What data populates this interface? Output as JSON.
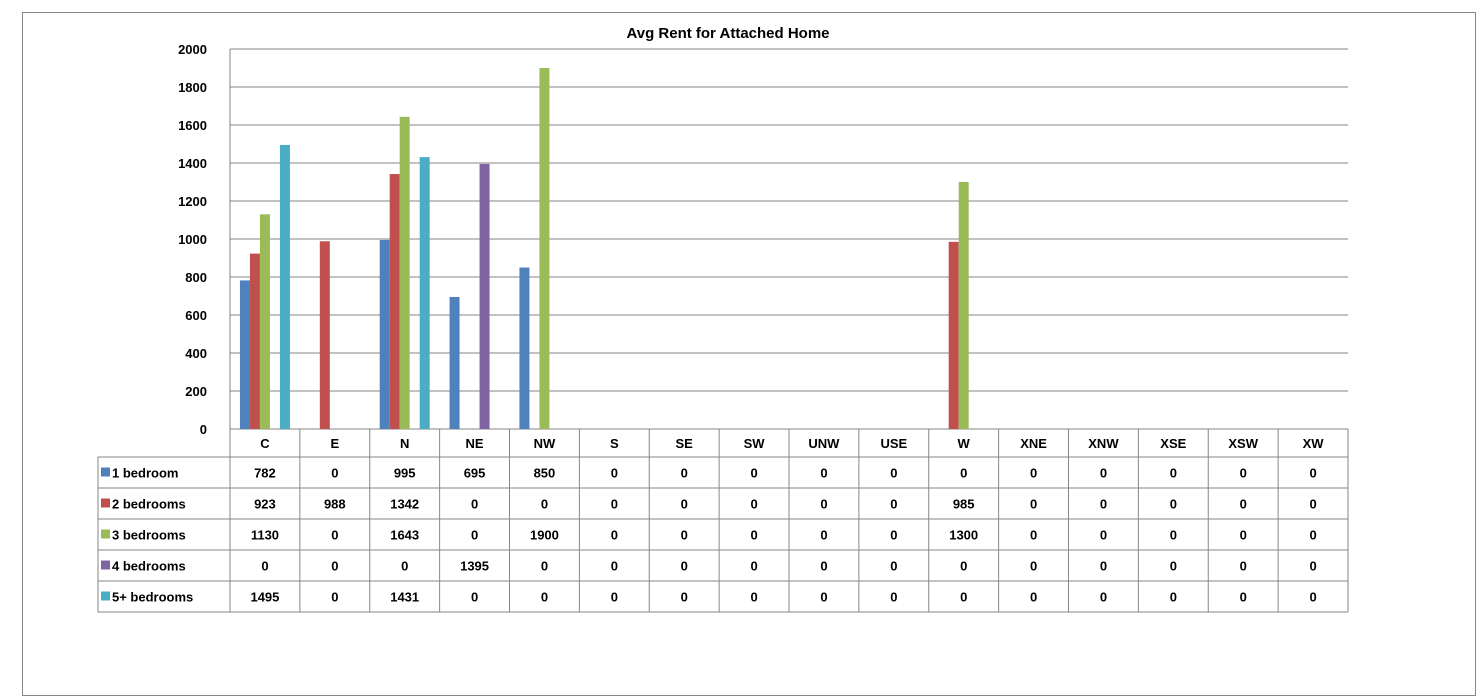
{
  "chart_data": {
    "type": "bar",
    "title": "Avg Rent for Attached Home",
    "xlabel": "",
    "ylabel": "",
    "ylim": [
      0,
      2000
    ],
    "yticks": [
      0,
      200,
      400,
      600,
      800,
      1000,
      1200,
      1400,
      1600,
      1800,
      2000
    ],
    "grid": true,
    "legend": "data-table",
    "categories": [
      "C",
      "E",
      "N",
      "NE",
      "NW",
      "S",
      "SE",
      "SW",
      "UNW",
      "USE",
      "W",
      "XNE",
      "XNW",
      "XSE",
      "XSW",
      "XW"
    ],
    "series": [
      {
        "name": "1 bedroom",
        "color": "#4F81BD",
        "values": [
          782,
          0,
          995,
          695,
          850,
          0,
          0,
          0,
          0,
          0,
          0,
          0,
          0,
          0,
          0,
          0
        ]
      },
      {
        "name": "2 bedrooms",
        "color": "#C0504D",
        "values": [
          923,
          988,
          1342,
          0,
          0,
          0,
          0,
          0,
          0,
          0,
          985,
          0,
          0,
          0,
          0,
          0
        ]
      },
      {
        "name": "3 bedrooms",
        "color": "#9BBB59",
        "values": [
          1130,
          0,
          1643,
          0,
          1900,
          0,
          0,
          0,
          0,
          0,
          1300,
          0,
          0,
          0,
          0,
          0
        ]
      },
      {
        "name": "4 bedrooms",
        "color": "#8064A2",
        "values": [
          0,
          0,
          0,
          1395,
          0,
          0,
          0,
          0,
          0,
          0,
          0,
          0,
          0,
          0,
          0,
          0
        ]
      },
      {
        "name": "5+ bedrooms",
        "color": "#4BACC6",
        "values": [
          1495,
          0,
          1431,
          0,
          0,
          0,
          0,
          0,
          0,
          0,
          0,
          0,
          0,
          0,
          0,
          0
        ]
      }
    ]
  }
}
